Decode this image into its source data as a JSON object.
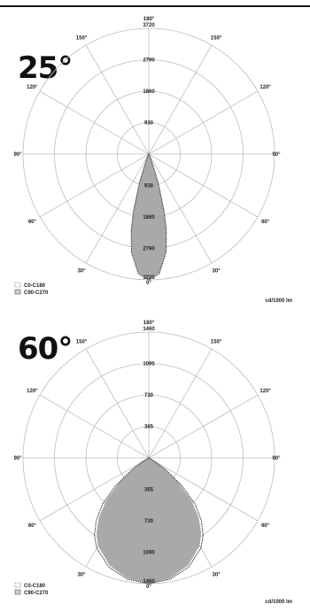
{
  "chart_data": [
    {
      "type": "polar",
      "title": "25°",
      "max": 3720,
      "ring_labels": [
        "930",
        "1860",
        "2790",
        "3720"
      ],
      "angle_labels": {
        "top": "180°",
        "bottom": "0°",
        "upper_left": "150°",
        "upper_right": "150°",
        "mid_upper_left": "120°",
        "mid_upper_right": "120°",
        "left": "90°",
        "right": "90°",
        "mid_lower_left": "60°",
        "mid_lower_right": "60°",
        "lower_left": "30°",
        "lower_right": "30°"
      },
      "unit": "cd/1000 lm",
      "series": [
        {
          "name": "C0-C180",
          "style": "dotted",
          "angles": [
            0,
            5,
            10,
            13,
            15,
            18,
            20,
            25,
            30,
            90
          ],
          "values": [
            3720,
            3550,
            2950,
            2300,
            1750,
            900,
            400,
            80,
            10,
            0
          ]
        },
        {
          "name": "C90-C270",
          "style": "filled",
          "angles": [
            0,
            5,
            10,
            13,
            15,
            18,
            20,
            25,
            30,
            90
          ],
          "values": [
            3700,
            3530,
            2930,
            2280,
            1730,
            880,
            390,
            75,
            10,
            0
          ]
        }
      ]
    },
    {
      "type": "polar",
      "title": "60°",
      "max": 1460,
      "ring_labels": [
        "365",
        "730",
        "1095",
        "1460"
      ],
      "angle_labels": {
        "top": "180°",
        "bottom": "0°",
        "upper_left": "150°",
        "upper_right": "150°",
        "mid_upper_left": "120°",
        "mid_upper_right": "120°",
        "left": "90°",
        "right": "90°",
        "mid_lower_left": "60°",
        "mid_lower_right": "60°",
        "lower_left": "30°",
        "lower_right": "30°"
      },
      "unit": "cd/1000 lm",
      "series": [
        {
          "name": "C0-C180",
          "style": "dotted",
          "angles": [
            0,
            10,
            20,
            30,
            35,
            40,
            45,
            50,
            55,
            60,
            90
          ],
          "values": [
            1460,
            1430,
            1350,
            1210,
            1100,
            950,
            760,
            500,
            240,
            60,
            0
          ]
        },
        {
          "name": "C90-C270",
          "style": "filled",
          "angles": [
            0,
            10,
            20,
            30,
            35,
            40,
            45,
            50,
            55,
            60,
            90
          ],
          "values": [
            1460,
            1420,
            1330,
            1180,
            1060,
            900,
            700,
            450,
            200,
            50,
            0
          ]
        }
      ]
    }
  ],
  "colors": {
    "fill": "#a9a9a9",
    "dotted": "#2b2b2b",
    "grid": "#bdbdbd",
    "text": "#222222"
  }
}
